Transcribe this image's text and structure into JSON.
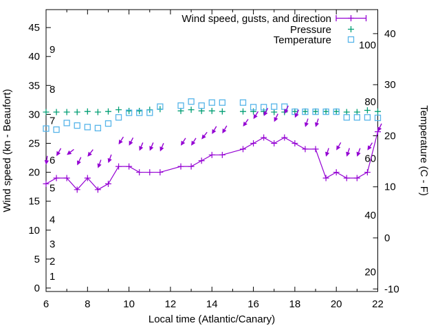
{
  "chart_data": {
    "type": "line",
    "title": "",
    "xlabel": "Local time (Atlantic/Canary)",
    "ylabel_left": "Wind speed (kn - Beaufort)",
    "ylabel_right": "Temperature (C - F)",
    "x_range": [
      6,
      22
    ],
    "x_major_ticks": [
      6,
      8,
      10,
      12,
      14,
      16,
      18,
      20,
      22
    ],
    "x_minor_ticks": [
      7,
      9,
      11,
      13,
      15,
      17,
      19,
      21
    ],
    "y_left_range": [
      -0.6,
      48.1
    ],
    "y_left_ticks": [
      0,
      5,
      10,
      15,
      20,
      25,
      30,
      35,
      40,
      45
    ],
    "y_right_range": [
      -10.5,
      44.7
    ],
    "y_right_ticks": [
      -10,
      0,
      10,
      20,
      30,
      40
    ],
    "grid": false,
    "legend_position": "top-right-inside",
    "legend": [
      {
        "label": "Wind speed, gusts, and direction",
        "series": "wind",
        "sample": "line-plus"
      },
      {
        "label": "Pressure",
        "series": "pressure",
        "sample": "plus"
      },
      {
        "label": "Temperature",
        "series": "temperature",
        "sample": "square"
      }
    ],
    "beaufort_labels": [
      {
        "text": "1",
        "kn": 2.0
      },
      {
        "text": "2",
        "kn": 4.6
      },
      {
        "text": "3",
        "kn": 7.6
      },
      {
        "text": "4",
        "kn": 11.8
      },
      {
        "text": "5",
        "kn": 17.3
      },
      {
        "text": "6",
        "kn": 22.1
      },
      {
        "text": "7",
        "kn": 28.9
      },
      {
        "text": "8",
        "kn": 34.3
      },
      {
        "text": "9",
        "kn": 41.2
      }
    ],
    "fahrenheit_labels": [
      {
        "text": "20",
        "c": -6.67
      },
      {
        "text": "40",
        "c": 4.44
      },
      {
        "text": "60",
        "c": 15.56
      },
      {
        "text": "80",
        "c": 26.67
      },
      {
        "text": "100",
        "c": 37.78
      }
    ],
    "colors": {
      "wind": "#9400d3",
      "pressure": "#009e73",
      "temperature": "#56b4e9",
      "axis": "#000000",
      "background": "#ffffff"
    },
    "series": {
      "wind_speed_kn": [
        [
          6,
          18
        ],
        [
          6.5,
          19
        ],
        [
          7,
          19
        ],
        [
          7.5,
          17
        ],
        [
          8,
          19
        ],
        [
          8.5,
          17
        ],
        [
          9,
          18
        ],
        [
          9.5,
          21
        ],
        [
          10,
          21
        ],
        [
          10.5,
          20
        ],
        [
          11,
          20
        ],
        [
          11.5,
          20
        ],
        [
          12.5,
          21
        ],
        [
          13,
          21
        ],
        [
          13.5,
          22
        ],
        [
          14,
          23
        ],
        [
          14.5,
          23
        ],
        [
          15.5,
          24
        ],
        [
          16,
          25
        ],
        [
          16.5,
          26
        ],
        [
          17,
          25
        ],
        [
          17.5,
          26
        ],
        [
          18,
          25
        ],
        [
          18.5,
          24
        ],
        [
          19,
          24
        ],
        [
          19.5,
          19
        ],
        [
          20,
          20
        ],
        [
          20.5,
          19
        ],
        [
          21,
          19
        ],
        [
          21.5,
          20
        ],
        [
          22,
          27
        ]
      ],
      "gusts_kn_direction_deg": [
        [
          6,
          21.3,
          188
        ],
        [
          6.5,
          22.8,
          210
        ],
        [
          7,
          23.0,
          232
        ],
        [
          7.5,
          21.2,
          205
        ],
        [
          8,
          22.7,
          218
        ],
        [
          8.5,
          20.7,
          200
        ],
        [
          9,
          21.6,
          200
        ],
        [
          9.5,
          24.8,
          212
        ],
        [
          10,
          24.6,
          207
        ],
        [
          10.5,
          23.7,
          203
        ],
        [
          11,
          23.7,
          203
        ],
        [
          11.5,
          23.6,
          203
        ],
        [
          12.5,
          24.6,
          212
        ],
        [
          13,
          24.6,
          212
        ],
        [
          13.5,
          25.7,
          218
        ],
        [
          14,
          26.6,
          210
        ],
        [
          14.5,
          26.7,
          210
        ],
        [
          15.5,
          27.9,
          215
        ],
        [
          16,
          29.2,
          212
        ],
        [
          16.5,
          29.7,
          207
        ],
        [
          17,
          28.7,
          205
        ],
        [
          17.5,
          30.1,
          205
        ],
        [
          18,
          29.4,
          205
        ],
        [
          18.5,
          27.8,
          198
        ],
        [
          19,
          27.8,
          198
        ],
        [
          19.5,
          22.7,
          198
        ],
        [
          20,
          23.8,
          210
        ],
        [
          20.5,
          22.7,
          198
        ],
        [
          21,
          22.7,
          200
        ],
        [
          21.5,
          23.8,
          213
        ],
        [
          22,
          27.0,
          205
        ]
      ],
      "pressure_plotted_left_axis": [
        [
          6,
          30.4
        ],
        [
          6.5,
          30.4
        ],
        [
          7,
          30.4
        ],
        [
          7.5,
          30.4
        ],
        [
          8,
          30.5
        ],
        [
          8.5,
          30.4
        ],
        [
          9,
          30.5
        ],
        [
          9.5,
          30.8
        ],
        [
          10,
          30.6
        ],
        [
          10.5,
          30.6
        ],
        [
          11,
          30.8
        ],
        [
          11.5,
          30.9
        ],
        [
          12.5,
          30.6
        ],
        [
          13,
          30.8
        ],
        [
          13.5,
          30.6
        ],
        [
          14,
          30.6
        ],
        [
          14.5,
          30.5
        ],
        [
          15.5,
          30.5
        ],
        [
          16,
          30.5
        ],
        [
          16.5,
          30.5
        ],
        [
          17,
          30.4
        ],
        [
          17.5,
          30.4
        ],
        [
          18,
          30.5
        ],
        [
          18.5,
          30.5
        ],
        [
          19,
          30.5
        ],
        [
          19.5,
          30.5
        ],
        [
          20,
          30.5
        ],
        [
          20.5,
          30.4
        ],
        [
          21,
          30.4
        ],
        [
          21.5,
          30.7
        ],
        [
          22,
          30.5
        ]
      ],
      "temperature_c": [
        [
          6,
          21.4
        ],
        [
          6.5,
          21.2
        ],
        [
          7,
          22.5
        ],
        [
          7.5,
          22.0
        ],
        [
          8,
          21.7
        ],
        [
          8.5,
          21.5
        ],
        [
          9,
          22.4
        ],
        [
          9.5,
          23.6
        ],
        [
          10,
          24.5
        ],
        [
          10.5,
          24.5
        ],
        [
          11,
          24.5
        ],
        [
          11.5,
          25.7
        ],
        [
          12.5,
          25.9
        ],
        [
          13,
          26.7
        ],
        [
          13.5,
          25.9
        ],
        [
          14,
          26.5
        ],
        [
          14.5,
          26.5
        ],
        [
          15.5,
          26.5
        ],
        [
          16,
          25.6
        ],
        [
          16.5,
          25.6
        ],
        [
          17,
          25.7
        ],
        [
          17.5,
          25.7
        ],
        [
          18,
          24.7
        ],
        [
          18.5,
          24.7
        ],
        [
          19,
          24.7
        ],
        [
          19.5,
          24.7
        ],
        [
          20,
          24.7
        ],
        [
          20.5,
          23.6
        ],
        [
          21,
          23.6
        ],
        [
          21.5,
          23.6
        ],
        [
          22,
          23.5
        ]
      ]
    }
  }
}
